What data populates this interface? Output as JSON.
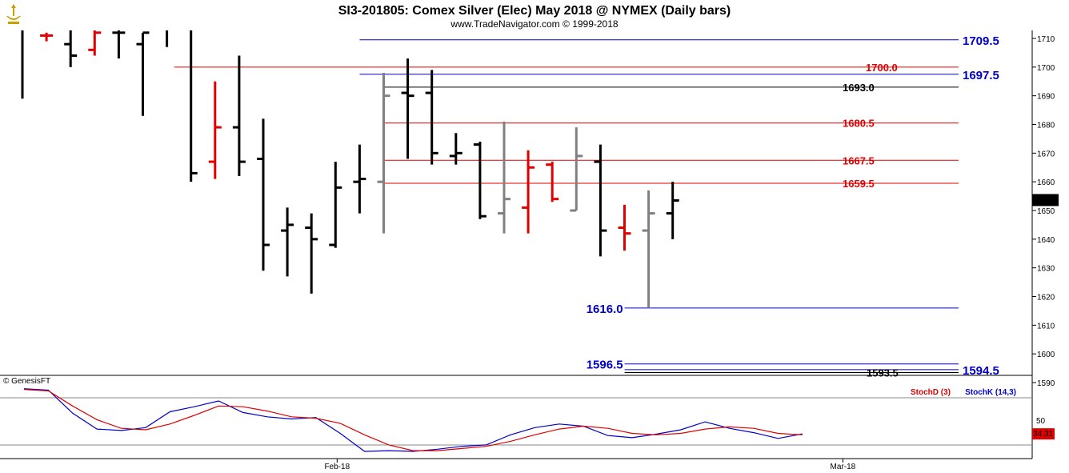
{
  "title": "SI3-201805:  Comex Silver (Elec) May 2018 @ NYMEX  (Daily bars)",
  "subtitle": "www.TradeNavigator.com © 1999-2018",
  "copyright": "© GenesisFT",
  "colors": {
    "up_bar": "#000000",
    "down_bar": "#e00000",
    "inside_bar": "#808080",
    "support_line": "#0000cc",
    "resistance_line": "#cc0000",
    "stoch_d": "#e00000",
    "stoch_k": "#0000cc"
  },
  "chart_data": {
    "type": "ohlc",
    "y_axis_ticks": [
      1590,
      1600,
      1610,
      1620,
      1630,
      1640,
      1650,
      1660,
      1670,
      1680,
      1690,
      1700,
      1710
    ],
    "ylim": [
      1586,
      1713
    ],
    "x_labels": [
      {
        "label": "Feb-18",
        "bar": 13
      },
      {
        "label": "Mar-18",
        "bar": 34
      }
    ],
    "last_price": "1653.5",
    "bars": [
      {
        "high": 1714,
        "low": 1689,
        "open": 1714,
        "close": 1714,
        "color": "black"
      },
      {
        "high": 1712,
        "low": 1709,
        "open": 1711,
        "close": 1711,
        "color": "red"
      },
      {
        "high": 1713,
        "low": 1700,
        "open": 1708,
        "close": 1704,
        "color": "black"
      },
      {
        "high": 1713,
        "low": 1704,
        "open": 1706,
        "close": 1712,
        "color": "red"
      },
      {
        "high": 1713,
        "low": 1703,
        "open": 1712,
        "close": 1712,
        "color": "black"
      },
      {
        "high": 1712,
        "low": 1683,
        "open": 1708,
        "close": 1712,
        "color": "black"
      },
      {
        "high": 1713,
        "low": 1707,
        "open": 1713,
        "close": 1713,
        "color": "black"
      },
      {
        "high": 1713,
        "low": 1660,
        "open": 1713,
        "close": 1663,
        "color": "black"
      },
      {
        "high": 1695,
        "low": 1661,
        "open": 1667,
        "close": 1679,
        "color": "red"
      },
      {
        "high": 1704,
        "low": 1662,
        "open": 1679,
        "close": 1667,
        "color": "black"
      },
      {
        "high": 1682,
        "low": 1629,
        "open": 1668,
        "close": 1638,
        "color": "black"
      },
      {
        "high": 1651,
        "low": 1627,
        "open": 1643,
        "close": 1645,
        "color": "black"
      },
      {
        "high": 1649,
        "low": 1621,
        "open": 1644,
        "close": 1640,
        "color": "black"
      },
      {
        "high": 1667,
        "low": 1637,
        "open": 1638,
        "close": 1658,
        "color": "black"
      },
      {
        "high": 1673,
        "low": 1649,
        "open": 1660,
        "close": 1661,
        "color": "black"
      },
      {
        "high": 1698,
        "low": 1642,
        "open": 1660,
        "close": 1690,
        "color": "gray"
      },
      {
        "high": 1703,
        "low": 1668,
        "open": 1691,
        "close": 1690,
        "color": "black"
      },
      {
        "high": 1699,
        "low": 1666,
        "open": 1691,
        "close": 1670,
        "color": "black"
      },
      {
        "high": 1677,
        "low": 1666,
        "open": 1669,
        "close": 1670,
        "color": "black"
      },
      {
        "high": 1674,
        "low": 1647,
        "open": 1673,
        "close": 1648,
        "color": "black"
      },
      {
        "high": 1681,
        "low": 1642,
        "open": 1649,
        "close": 1654,
        "color": "gray"
      },
      {
        "high": 1671,
        "low": 1642,
        "open": 1651,
        "close": 1665,
        "color": "red"
      },
      {
        "high": 1667,
        "low": 1653,
        "open": 1666,
        "close": 1654,
        "color": "red"
      },
      {
        "high": 1679,
        "low": 1650,
        "open": 1650,
        "close": 1669,
        "color": "gray"
      },
      {
        "high": 1673,
        "low": 1634,
        "open": 1667,
        "close": 1643,
        "color": "black"
      },
      {
        "high": 1652,
        "low": 1636,
        "open": 1644,
        "close": 1642,
        "color": "red"
      },
      {
        "high": 1657,
        "low": 1616,
        "open": 1643,
        "close": 1649,
        "color": "gray"
      },
      {
        "high": 1660,
        "low": 1640,
        "open": 1649,
        "close": 1653.5,
        "color": "black"
      }
    ],
    "levels": [
      {
        "price": 1709.5,
        "label": "1709.5",
        "color": "blue",
        "start_bar": 15,
        "label_side": "right"
      },
      {
        "price": 1700.0,
        "label": "1700.0",
        "color": "red",
        "start_bar": 7.3,
        "label_side": "mid"
      },
      {
        "price": 1697.5,
        "label": "1697.5",
        "color": "blue",
        "start_bar": 15,
        "label_side": "right"
      },
      {
        "price": 1693.0,
        "label": "1693.0",
        "color": "black",
        "start_bar": 16,
        "label_side": "mid"
      },
      {
        "price": 1680.5,
        "label": "1680.5",
        "color": "red",
        "start_bar": 16,
        "label_side": "mid"
      },
      {
        "price": 1667.5,
        "label": "1667.5",
        "color": "red",
        "start_bar": 16,
        "label_side": "mid"
      },
      {
        "price": 1659.5,
        "label": "1659.5",
        "color": "red",
        "start_bar": 16,
        "label_side": "mid"
      },
      {
        "price": 1616.0,
        "label": "1616.0",
        "color": "blue",
        "start_bar": 26,
        "label_side": "left"
      },
      {
        "price": 1596.5,
        "label": "1596.5",
        "color": "blue",
        "start_bar": 26,
        "label_side": "left"
      },
      {
        "price": 1594.5,
        "label": "1594.5",
        "color": "blue",
        "start_bar": 26,
        "label_side": "right"
      },
      {
        "price": 1593.5,
        "label": "1593.5",
        "color": "black",
        "start_bar": 26,
        "label_side": "mid"
      }
    ],
    "stochastic": {
      "d_label": "StochD (3)",
      "k_label": "StochK (14,3)",
      "y_tick": "50",
      "last_value": "34.31",
      "stoch_k": [
        97,
        95,
        63,
        41,
        39,
        43,
        65,
        72,
        80,
        64,
        58,
        55,
        57,
        35,
        10,
        11,
        10,
        13,
        17,
        19,
        33,
        43,
        48,
        45,
        32,
        29,
        34,
        40,
        51,
        42,
        36,
        28,
        34.3
      ],
      "stoch_d": [
        96,
        94,
        73,
        54,
        42,
        40,
        48,
        60,
        73,
        72,
        66,
        58,
        56,
        49,
        33,
        19,
        11,
        11,
        14,
        17,
        24,
        33,
        41,
        45,
        42,
        35,
        33,
        35,
        41,
        44,
        42,
        35,
        33
      ]
    }
  }
}
